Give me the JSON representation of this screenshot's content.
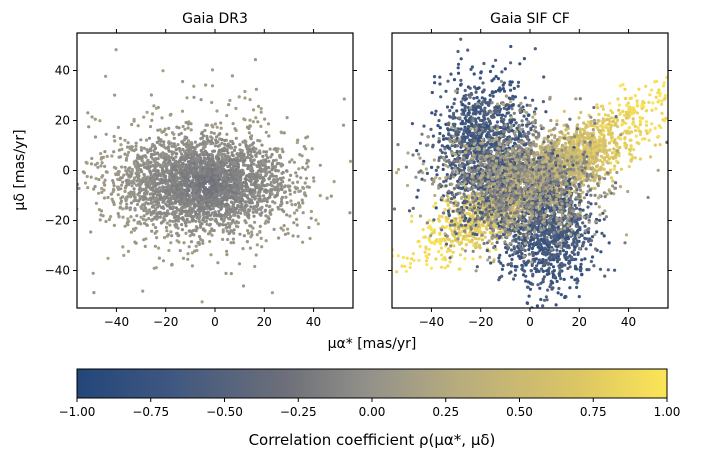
{
  "chart_data": [
    {
      "type": "scatter",
      "title": "Gaia DR3",
      "xlabel": "μα* [mas/yr]",
      "ylabel": "μδ [mas/yr]",
      "xlim": [
        -56,
        56
      ],
      "ylim": [
        -55,
        55
      ],
      "xticks": [
        -40,
        -20,
        0,
        20,
        40
      ],
      "yticks": [
        -40,
        -20,
        0,
        20,
        40
      ],
      "marker": {
        "x": -3,
        "y": -6,
        "color": "#ffffff"
      },
      "color_range": [
        -0.25,
        0.1
      ]
    },
    {
      "type": "scatter",
      "title": "Gaia SIF CF",
      "xlabel": "μα* [mas/yr]",
      "xlim": [
        -56,
        56
      ],
      "ylim": [
        -55,
        55
      ],
      "xticks": [
        -40,
        -20,
        0,
        20,
        40
      ],
      "yticks": [
        -40,
        -20,
        0,
        20,
        40
      ],
      "marker": {
        "x": -3,
        "y": -6,
        "color": "#ffffff"
      },
      "color_range": [
        -1.0,
        1.0
      ]
    }
  ],
  "colorbar": {
    "label": "Correlation coefficient ρ(μα*, μδ)",
    "ticks": [
      "−1.00",
      "−0.75",
      "−0.50",
      "−0.25",
      "0.00",
      "0.25",
      "0.50",
      "0.75",
      "1.00"
    ],
    "colormap": "cividis",
    "colors": [
      "#00204c",
      "#2a4675",
      "#575d6d",
      "#7f7c75",
      "#a59c74",
      "#cbba69",
      "#f3dc58",
      "#fee838"
    ]
  },
  "labels": {
    "title_left": "Gaia DR3",
    "title_right": "Gaia SIF CF",
    "ylabel": "μδ [mas/yr]",
    "xlabel": "μα* [mas/yr]",
    "cbar_label": "Correlation coefficient ρ(μα*, μδ)"
  }
}
